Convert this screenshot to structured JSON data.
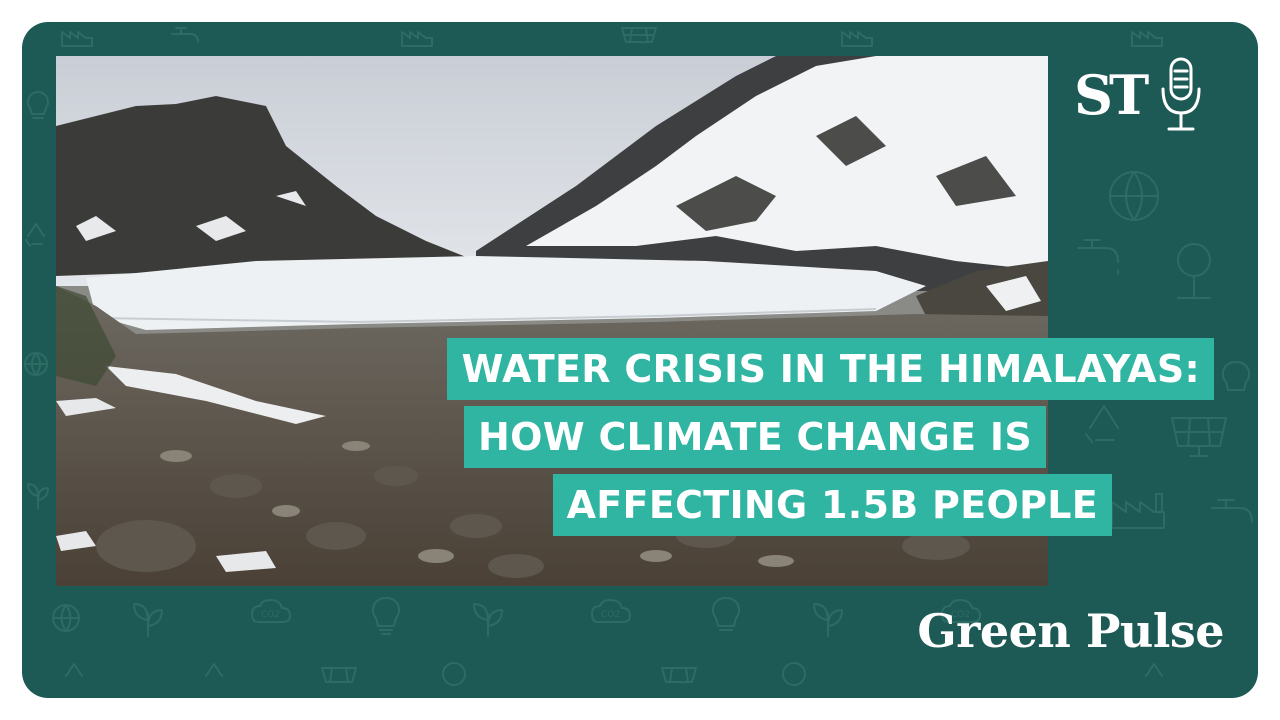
{
  "thumbnail": {
    "logo_text": "ST",
    "headline_lines": [
      "WATER CRISIS IN THE HIMALAYAS:",
      "HOW CLIMATE CHANGE IS",
      "AFFECTING 1.5B PEOPLE"
    ],
    "show_name": "Green Pulse",
    "icons": {
      "logo_icon": "microphone-icon",
      "pattern_icons": [
        "factory-icon",
        "globe-icon",
        "tree-icon",
        "lightbulb-icon",
        "solar-panel-icon",
        "recycle-icon",
        "co2-icon",
        "water-tap-icon",
        "plant-icon"
      ]
    },
    "colors": {
      "card_background": "#1e5a55",
      "headline_highlight": "#2fb5a1",
      "text": "#ffffff"
    }
  }
}
